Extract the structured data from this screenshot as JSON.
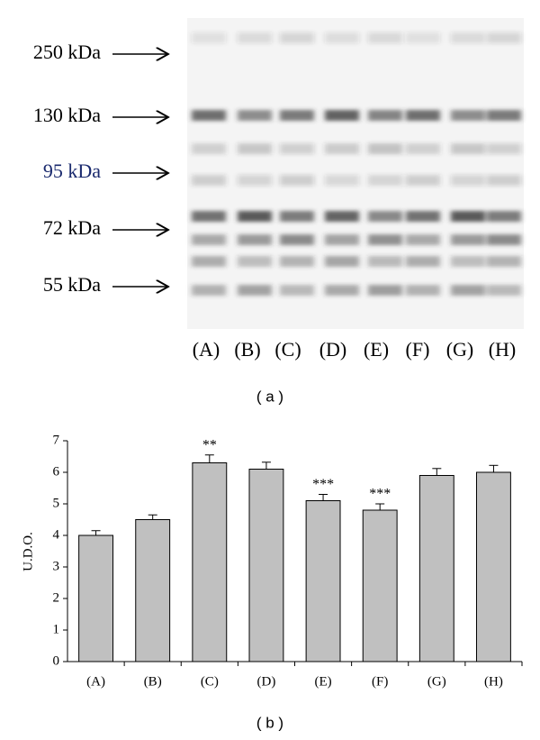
{
  "blot": {
    "markers": [
      "250 kDa",
      "130 kDa",
      "95 kDa",
      "72 kDa",
      "55 kDa"
    ],
    "lanes": [
      "(A)",
      "(B)",
      "(C)",
      "(D)",
      "(E)",
      "(F)",
      "(G)",
      "(H)"
    ],
    "caption": "( a )"
  },
  "chart_data": {
    "type": "bar",
    "caption": "( b )",
    "y_label": "U.D.O.",
    "categories": [
      "(A)",
      "(B)",
      "(C)",
      "(D)",
      "(E)",
      "(F)",
      "(G)",
      "(H)"
    ],
    "values": [
      4.0,
      4.5,
      6.3,
      6.1,
      5.1,
      4.8,
      5.9,
      6.0
    ],
    "errors": [
      0.15,
      0.15,
      0.25,
      0.22,
      0.2,
      0.2,
      0.22,
      0.22
    ],
    "significance": [
      null,
      null,
      "**",
      null,
      "***",
      "***",
      null,
      null
    ],
    "color": "#c0c0c0",
    "ylim": [
      0,
      7
    ],
    "yticks": [
      0,
      1,
      2,
      3,
      4,
      5,
      6,
      7
    ]
  }
}
